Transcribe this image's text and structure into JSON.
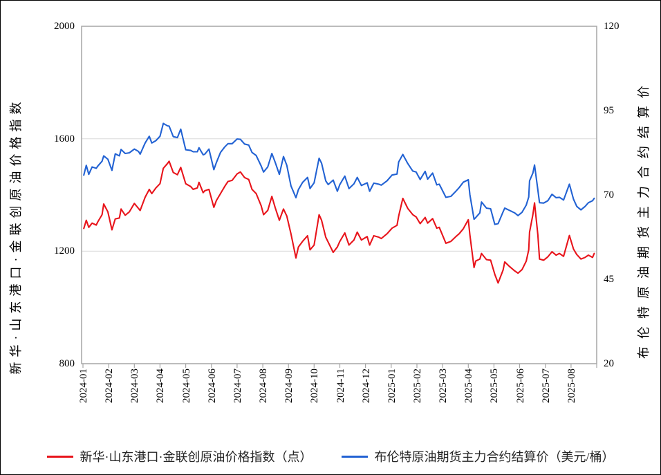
{
  "page": {
    "background": "#ffffff",
    "border_color": "#000000"
  },
  "chart_data": {
    "type": "line",
    "title": "",
    "left_axis": {
      "label": "新华·山东港口·金联创原油价格指数",
      "ticks": [
        2000,
        1600,
        1200,
        800
      ],
      "range": [
        800,
        2000
      ],
      "gridlines": [
        1600,
        1200
      ]
    },
    "right_axis": {
      "label": "布伦特原油期货主力合约结算价",
      "ticks": [
        120,
        95,
        70,
        45,
        20
      ],
      "range": [
        20,
        120
      ]
    },
    "x_tick_labels": [
      "2024-01",
      "2024-02",
      "2024-03",
      "2024-04",
      "2024-05",
      "2024-06",
      "2024-07",
      "2024-08",
      "2024-09",
      "2024-10",
      "2024-11",
      "2024-12",
      "2025-01",
      "2025-02",
      "2025-03",
      "2025-04",
      "2025-05",
      "2025-06",
      "2025-07",
      "2025-08"
    ],
    "grid_color": "#d9d9d9",
    "axis_color": "#a6a6a6",
    "x": [
      "2024-01-02",
      "2024-01-05",
      "2024-01-08",
      "2024-01-12",
      "2024-01-17",
      "2024-01-19",
      "2024-01-24",
      "2024-01-26",
      "2024-01-31",
      "2024-02-05",
      "2024-02-09",
      "2024-02-14",
      "2024-02-16",
      "2024-02-21",
      "2024-02-26",
      "2024-03-01",
      "2024-03-06",
      "2024-03-08",
      "2024-03-14",
      "2024-03-19",
      "2024-03-22",
      "2024-03-27",
      "2024-04-01",
      "2024-04-05",
      "2024-04-10",
      "2024-04-12",
      "2024-04-17",
      "2024-04-22",
      "2024-04-26",
      "2024-05-01",
      "2024-05-07",
      "2024-05-10",
      "2024-05-15",
      "2024-05-17",
      "2024-05-22",
      "2024-05-24",
      "2024-05-29",
      "2024-06-04",
      "2024-06-07",
      "2024-06-12",
      "2024-06-17",
      "2024-06-21",
      "2024-06-26",
      "2024-07-01",
      "2024-07-05",
      "2024-07-10",
      "2024-07-15",
      "2024-07-19",
      "2024-07-24",
      "2024-07-30",
      "2024-08-02",
      "2024-08-07",
      "2024-08-12",
      "2024-08-16",
      "2024-08-21",
      "2024-08-26",
      "2024-08-30",
      "2024-09-04",
      "2024-09-10",
      "2024-09-13",
      "2024-09-18",
      "2024-09-24",
      "2024-09-27",
      "2024-10-01",
      "2024-10-07",
      "2024-10-10",
      "2024-10-15",
      "2024-10-18",
      "2024-10-24",
      "2024-10-29",
      "2024-11-01",
      "2024-11-07",
      "2024-11-12",
      "2024-11-18",
      "2024-11-22",
      "2024-11-27",
      "2024-12-03",
      "2024-12-06",
      "2024-12-11",
      "2024-12-17",
      "2024-12-20",
      "2024-12-27",
      "2025-01-02",
      "2025-01-08",
      "2025-01-10",
      "2025-01-15",
      "2025-01-21",
      "2025-01-27",
      "2025-01-31",
      "2025-02-05",
      "2025-02-11",
      "2025-02-14",
      "2025-02-20",
      "2025-02-25",
      "2025-02-28",
      "2025-03-05",
      "2025-03-11",
      "2025-03-17",
      "2025-03-21",
      "2025-03-26",
      "2025-04-01",
      "2025-04-03",
      "2025-04-08",
      "2025-04-10",
      "2025-04-15",
      "2025-04-17",
      "2025-04-23",
      "2025-04-28",
      "2025-05-02",
      "2025-05-06",
      "2025-05-12",
      "2025-05-14",
      "2025-05-20",
      "2025-05-26",
      "2025-05-30",
      "2025-06-04",
      "2025-06-09",
      "2025-06-12",
      "2025-06-13",
      "2025-06-17",
      "2025-06-19",
      "2025-06-23",
      "2025-06-25",
      "2025-06-30",
      "2025-07-04",
      "2025-07-09",
      "2025-07-14",
      "2025-07-18",
      "2025-07-23",
      "2025-07-30",
      "2025-08-04",
      "2025-08-08",
      "2025-08-13",
      "2025-08-18",
      "2025-08-22",
      "2025-08-27",
      "2025-08-29"
    ],
    "series": [
      {
        "name": "新华·山东港口·金联创原油价格指数（点）",
        "axis": "left",
        "color": "#e8141b",
        "values": [
          1281,
          1310,
          1285,
          1300,
          1293,
          1305,
          1330,
          1368,
          1340,
          1276,
          1315,
          1318,
          1350,
          1328,
          1340,
          1370,
          1352,
          1345,
          1392,
          1420,
          1405,
          1425,
          1440,
          1495,
          1512,
          1520,
          1480,
          1472,
          1498,
          1440,
          1430,
          1420,
          1425,
          1445,
          1408,
          1415,
          1420,
          1356,
          1380,
          1405,
          1430,
          1448,
          1452,
          1475,
          1482,
          1462,
          1455,
          1420,
          1405,
          1362,
          1330,
          1345,
          1395,
          1355,
          1310,
          1350,
          1325,
          1262,
          1176,
          1215,
          1235,
          1255,
          1205,
          1222,
          1330,
          1310,
          1250,
          1232,
          1196,
          1215,
          1235,
          1265,
          1222,
          1240,
          1268,
          1240,
          1252,
          1222,
          1255,
          1250,
          1245,
          1262,
          1282,
          1292,
          1325,
          1388,
          1352,
          1330,
          1322,
          1298,
          1320,
          1300,
          1316,
          1282,
          1285,
          1228,
          1235,
          1252,
          1262,
          1280,
          1312,
          1258,
          1142,
          1165,
          1172,
          1192,
          1170,
          1168,
          1118,
          1087,
          1133,
          1162,
          1145,
          1130,
          1122,
          1135,
          1165,
          1205,
          1268,
          1330,
          1372,
          1258,
          1172,
          1168,
          1180,
          1198,
          1186,
          1192,
          1182,
          1256,
          1208,
          1188,
          1172,
          1178,
          1186,
          1178,
          1192
        ]
      },
      {
        "name": "布伦特原油期货主力合约结算价（美元/桶）",
        "axis": "right",
        "color": "#2262d3",
        "values": [
          75.9,
          78.8,
          76.1,
          78.3,
          77.9,
          78.6,
          80.0,
          81.6,
          80.6,
          77.3,
          82.2,
          81.6,
          83.5,
          82.3,
          82.5,
          83.6,
          82.9,
          82.1,
          85.4,
          87.4,
          85.4,
          86.1,
          87.4,
          91.2,
          90.5,
          90.4,
          87.3,
          87.0,
          89.5,
          83.4,
          83.2,
          82.8,
          82.8,
          84.0,
          81.9,
          82.1,
          83.6,
          77.5,
          79.6,
          82.6,
          84.2,
          85.2,
          85.2,
          86.6,
          86.5,
          85.1,
          84.8,
          82.6,
          81.7,
          78.6,
          76.8,
          78.3,
          82.3,
          79.7,
          76.1,
          81.4,
          78.8,
          72.7,
          69.2,
          71.6,
          73.7,
          75.2,
          71.9,
          73.6,
          80.9,
          79.4,
          74.2,
          73.1,
          74.4,
          71.1,
          73.1,
          75.6,
          71.9,
          73.3,
          75.2,
          72.8,
          73.6,
          71.1,
          73.5,
          73.2,
          72.9,
          74.2,
          75.9,
          76.2,
          79.8,
          82.0,
          79.3,
          77.1,
          76.8,
          74.6,
          77.0,
          74.7,
          76.5,
          73.0,
          73.2,
          69.3,
          69.6,
          71.1,
          72.2,
          73.8,
          74.5,
          70.1,
          62.8,
          63.3,
          64.7,
          67.9,
          66.1,
          65.9,
          61.3,
          61.5,
          65.0,
          66.1,
          65.4,
          64.7,
          63.9,
          64.9,
          67.0,
          69.4,
          74.2,
          76.5,
          78.9,
          71.5,
          67.7,
          67.6,
          68.3,
          70.2,
          69.2,
          69.3,
          68.5,
          73.2,
          68.8,
          66.6,
          65.6,
          66.6,
          67.7,
          68.3,
          69.0
        ]
      }
    ],
    "legend_position": "bottom"
  }
}
